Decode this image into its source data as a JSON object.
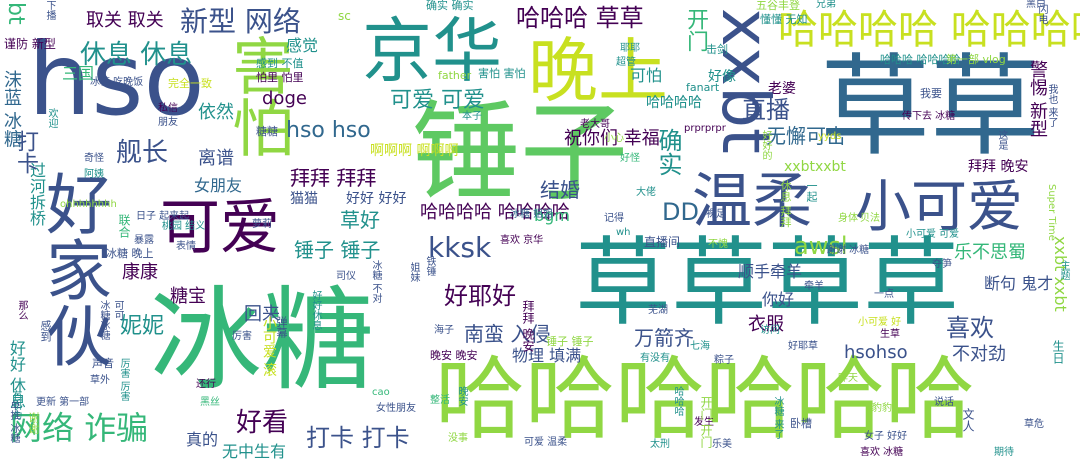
{
  "palette": {
    "purple": "#440154",
    "indigo": "#3b528b",
    "blue": "#31688e",
    "teal": "#21918c",
    "seagreen": "#2a9d8f",
    "green": "#35b779",
    "grass": "#5ec962",
    "lime": "#90d743",
    "yellow": "#c8e020"
  },
  "words": [
    {
      "text": "冰糖",
      "c": "green"
    },
    {
      "text": "锤子",
      "c": "grass"
    },
    {
      "text": "草草",
      "c": "blue"
    },
    {
      "text": "草草草草",
      "c": "teal"
    },
    {
      "text": "哈哈哈哈哈哈",
      "c": "lime"
    },
    {
      "text": "hso",
      "c": "indigo"
    },
    {
      "text": "京华",
      "c": "teal"
    },
    {
      "text": "好家伙",
      "c": "indigo"
    },
    {
      "text": "晚上",
      "c": "yellow"
    },
    {
      "text": "害怕",
      "c": "lime"
    },
    {
      "text": "可爱",
      "c": "purple"
    },
    {
      "text": "小可爱",
      "c": "indigo"
    },
    {
      "text": "温柔",
      "c": "indigo"
    },
    {
      "text": "xxbt",
      "c": "indigo"
    },
    {
      "text": "哈哈哈哈 哈哈哈哈",
      "c": "yellow"
    },
    {
      "text": "哈哈哈 草草",
      "c": "purple"
    },
    {
      "text": "新型 网络",
      "c": "indigo"
    },
    {
      "text": "休息 休息",
      "c": "teal"
    },
    {
      "text": "可爱 可爱",
      "c": "teal"
    },
    {
      "text": "hso hso",
      "c": "blue"
    },
    {
      "text": "舰长",
      "c": "indigo"
    },
    {
      "text": "打卡",
      "c": "indigo"
    },
    {
      "text": "离谱",
      "c": "indigo"
    },
    {
      "text": "依然",
      "c": "teal"
    },
    {
      "text": "拜拜 拜拜",
      "c": "purple"
    },
    {
      "text": "结婚",
      "c": "indigo"
    },
    {
      "text": "确实",
      "c": "teal"
    },
    {
      "text": "开门",
      "c": "green"
    },
    {
      "text": "直播",
      "c": "indigo"
    },
    {
      "text": "无懈可击",
      "c": "blue"
    },
    {
      "text": "拜拜 晚安",
      "c": "purple"
    },
    {
      "text": "awsl",
      "c": "lime"
    },
    {
      "text": "kksk",
      "c": "indigo"
    },
    {
      "text": "DD",
      "c": "blue"
    },
    {
      "text": "喜欢",
      "c": "indigo"
    },
    {
      "text": "好耶好",
      "c": "purple"
    },
    {
      "text": "草好",
      "c": "teal"
    },
    {
      "text": "锤子 锤子",
      "c": "teal"
    },
    {
      "text": "哈哈哈哈 哈哈哈哈",
      "c": "purple"
    },
    {
      "text": "网络 诈骗",
      "c": "green"
    },
    {
      "text": "好看",
      "c": "purple"
    },
    {
      "text": "打卡 打卡",
      "c": "indigo"
    },
    {
      "text": "真的",
      "c": "indigo"
    },
    {
      "text": "无中生有",
      "c": "teal"
    },
    {
      "text": "南蛮 入侵",
      "c": "indigo"
    },
    {
      "text": "万箭齐",
      "c": "indigo"
    },
    {
      "text": "物理 填满",
      "c": "indigo"
    },
    {
      "text": "衣服",
      "c": "purple"
    },
    {
      "text": "不对劲",
      "c": "indigo"
    },
    {
      "text": "hsohso",
      "c": "indigo"
    },
    {
      "text": "顺手牵羊",
      "c": "indigo"
    },
    {
      "text": "乐不思蜀",
      "c": "green"
    },
    {
      "text": "康康",
      "c": "purple"
    },
    {
      "text": "糖宝",
      "c": "purple"
    },
    {
      "text": "回来",
      "c": "indigo"
    },
    {
      "text": "妮妮",
      "c": "teal"
    },
    {
      "text": "你好",
      "c": "indigo"
    },
    {
      "text": "断句 鬼才",
      "c": "indigo"
    },
    {
      "text": "xxbt xxbt",
      "c": "lime"
    },
    {
      "text": "警惕 新型",
      "c": "purple"
    },
    {
      "text": "祝你们 幸福",
      "c": "purple"
    },
    {
      "text": "哈哈哈哈",
      "c": "teal"
    },
    {
      "text": "可怕",
      "c": "teal"
    },
    {
      "text": "doge",
      "c": "purple"
    },
    {
      "text": "感觉",
      "c": "teal"
    },
    {
      "text": "取关 取关",
      "c": "purple"
    },
    {
      "text": "三国",
      "c": "green"
    },
    {
      "text": "谨防 新型",
      "c": "purple"
    },
    {
      "text": "沫蓝 冰糖",
      "c": "blue"
    },
    {
      "text": "过河拆桥",
      "c": "teal"
    },
    {
      "text": "bt",
      "c": "green"
    },
    {
      "text": "啊啊啊 啊啊啊",
      "c": "yellow"
    },
    {
      "text": "女朋友",
      "c": "blue"
    },
    {
      "text": "猫猫",
      "c": "indigo"
    },
    {
      "text": "好好 好好",
      "c": "indigo"
    },
    {
      "text": "bgm",
      "c": "green"
    },
    {
      "text": "xxbtxxbt",
      "c": "lime"
    },
    {
      "text": "好像",
      "c": "teal"
    },
    {
      "text": "老婆",
      "c": "purple"
    },
    {
      "text": "好好 休息",
      "c": "teal"
    },
    {
      "text": "小可爱 滚",
      "c": "yellow"
    },
    {
      "text": "sc",
      "c": "lime"
    },
    {
      "text": "确实 确实",
      "c": "teal"
    },
    {
      "text": "五谷丰登",
      "c": "lime"
    },
    {
      "text": "懂懂 无知",
      "c": "teal"
    },
    {
      "text": "兄弟",
      "c": "teal"
    },
    {
      "text": "黑白",
      "c": "indigo"
    },
    {
      "text": "击剑",
      "c": "teal"
    },
    {
      "text": "耶耶",
      "c": "teal"
    },
    {
      "text": "超管",
      "c": "teal"
    },
    {
      "text": "感到 不值",
      "c": "teal"
    },
    {
      "text": "怕里 怕里",
      "c": "purple"
    },
    {
      "text": "完全一致",
      "c": "yellow"
    },
    {
      "text": "冰糖 吃晚饭",
      "c": "indigo"
    },
    {
      "text": "father",
      "c": "lime"
    },
    {
      "text": "害怕 害怕",
      "c": "teal"
    },
    {
      "text": "哈哈哈 哈哈哈哈",
      "c": "teal"
    },
    {
      "text": "第一部 vlog",
      "c": "lime"
    },
    {
      "text": "fanart",
      "c": "teal"
    },
    {
      "text": "私信",
      "c": "purple"
    },
    {
      "text": "糖糖",
      "c": "indigo"
    },
    {
      "text": "我要",
      "c": "indigo"
    },
    {
      "text": "朋友",
      "c": "indigo"
    },
    {
      "text": "老大哥",
      "c": "purple"
    },
    {
      "text": "prprprpr",
      "c": "purple"
    },
    {
      "text": "本子",
      "c": "teal"
    },
    {
      "text": "小心",
      "c": "lime"
    },
    {
      "text": "yyds",
      "c": "yellow"
    },
    {
      "text": "传下去 冰糖",
      "c": "purple"
    },
    {
      "text": "奇怪",
      "c": "indigo"
    },
    {
      "text": "阿姨",
      "c": "teal"
    },
    {
      "text": "好怪",
      "c": "green"
    },
    {
      "text": "冰糖 姐姐",
      "c": "blue"
    },
    {
      "text": "大佬",
      "c": "teal"
    },
    {
      "text": "裸足",
      "c": "indigo"
    },
    {
      "text": "Super Time",
      "c": "lime"
    },
    {
      "text": "桃园 结义",
      "c": "teal"
    },
    {
      "text": "喜欢 京华",
      "c": "purple"
    },
    {
      "text": "记得",
      "c": "indigo"
    },
    {
      "text": "wh",
      "c": "teal"
    },
    {
      "text": "萝莉",
      "c": "indigo"
    },
    {
      "text": "日子 起来起",
      "c": "indigo"
    },
    {
      "text": "ohhhhhhhh",
      "c": "lime"
    },
    {
      "text": "暴露",
      "c": "indigo"
    },
    {
      "text": "联合",
      "c": "green"
    },
    {
      "text": "表情",
      "c": "indigo"
    },
    {
      "text": "谢谢 冰糖",
      "c": "indigo"
    },
    {
      "text": "小可爱 可爱",
      "c": "teal"
    },
    {
      "text": "直播间",
      "c": "indigo"
    },
    {
      "text": "冰糖 晚上",
      "c": "indigo"
    },
    {
      "text": "司仪",
      "c": "indigo"
    },
    {
      "text": "厉害",
      "c": "indigo"
    },
    {
      "text": "芜湖",
      "c": "indigo"
    },
    {
      "text": "海子",
      "c": "indigo"
    },
    {
      "text": "晚安 晚安",
      "c": "purple"
    },
    {
      "text": "声音",
      "c": "indigo"
    },
    {
      "text": "草外",
      "c": "indigo"
    },
    {
      "text": "还行",
      "c": "purple"
    },
    {
      "text": "更新 第一部",
      "c": "indigo"
    },
    {
      "text": "七海",
      "c": "teal"
    },
    {
      "text": "有没有",
      "c": "teal"
    },
    {
      "text": "粽子",
      "c": "indigo"
    },
    {
      "text": "访问",
      "c": "teal"
    },
    {
      "text": "生草",
      "c": "purple"
    },
    {
      "text": "好耶草",
      "c": "indigo"
    },
    {
      "text": "一点",
      "c": "indigo"
    },
    {
      "text": "夺笋",
      "c": "indigo"
    },
    {
      "text": "小可爱 好",
      "c": "yellow"
    },
    {
      "text": "cao",
      "c": "green"
    },
    {
      "text": "女性朋友",
      "c": "indigo"
    },
    {
      "text": "整活",
      "c": "green"
    },
    {
      "text": "没事",
      "c": "lime"
    },
    {
      "text": "可爱 温柔",
      "c": "indigo"
    },
    {
      "text": "太刑",
      "c": "teal"
    },
    {
      "text": "发生",
      "c": "purple"
    },
    {
      "text": "乐美",
      "c": "indigo"
    },
    {
      "text": "卧槽",
      "c": "indigo"
    },
    {
      "text": "说话",
      "c": "indigo"
    },
    {
      "text": "文人",
      "c": "indigo"
    },
    {
      "text": "女子 好好",
      "c": "indigo"
    },
    {
      "text": "草危",
      "c": "indigo"
    },
    {
      "text": "喜欢 冰糖",
      "c": "purple"
    },
    {
      "text": "昨天",
      "c": "lime"
    },
    {
      "text": "豹豹",
      "c": "lime"
    },
    {
      "text": "期待",
      "c": "teal"
    },
    {
      "text": "黑丝",
      "c": "green"
    },
    {
      "text": "谢谢",
      "c": "lime"
    },
    {
      "text": "身体",
      "c": "lime"
    },
    {
      "text": "贝法",
      "c": "lime"
    },
    {
      "text": "生日",
      "c": "teal"
    },
    {
      "text": "不愧",
      "c": "lime"
    },
    {
      "text": "牵羊",
      "c": "indigo"
    },
    {
      "text": "拜拜 晚安",
      "c": "purple"
    },
    {
      "text": "锤子 锤子",
      "c": "lime"
    },
    {
      "text": "哈哈哈",
      "c": "teal"
    },
    {
      "text": "晚安",
      "c": "teal"
    },
    {
      "text": "开门 开门",
      "c": "lime"
    },
    {
      "text": "冰糖 来了",
      "c": "teal"
    },
    {
      "text": "主题",
      "c": "teal"
    },
    {
      "text": "铁锤",
      "c": "indigo"
    },
    {
      "text": "下播",
      "c": "indigo"
    },
    {
      "text": "好好休息",
      "c": "teal"
    },
    {
      "text": "弹幕",
      "c": "indigo"
    },
    {
      "text": "冰糖 不对",
      "c": "indigo"
    },
    {
      "text": "我也 来了",
      "c": "indigo"
    },
    {
      "text": "姐妹",
      "c": "indigo"
    },
    {
      "text": "欢迎",
      "c": "teal"
    },
    {
      "text": "单推 冰糖",
      "c": "indigo"
    },
    {
      "text": "感到",
      "c": "indigo"
    },
    {
      "text": "好好的",
      "c": "lime"
    },
    {
      "text": "可可",
      "c": "indigo"
    },
    {
      "text": "这是",
      "c": "indigo"
    },
    {
      "text": "休息 拜拜",
      "c": "lime"
    },
    {
      "text": "一起",
      "c": "teal"
    },
    {
      "text": "冰糖冰糖",
      "c": "indigo"
    },
    {
      "text": "有引力",
      "c": "teal"
    },
    {
      "text": "那么",
      "c": "purple"
    },
    {
      "text": "厉害 厉害",
      "c": "teal"
    },
    {
      "text": "闪电",
      "c": "indigo"
    },
    {
      "text": "哈哈哈",
      "c": "indigo"
    },
    {
      "text": "晚安 冰糖",
      "c": "indigo"
    },
    {
      "text": "无懈可击 无懈可击",
      "c": "indigo"
    }
  ]
}
